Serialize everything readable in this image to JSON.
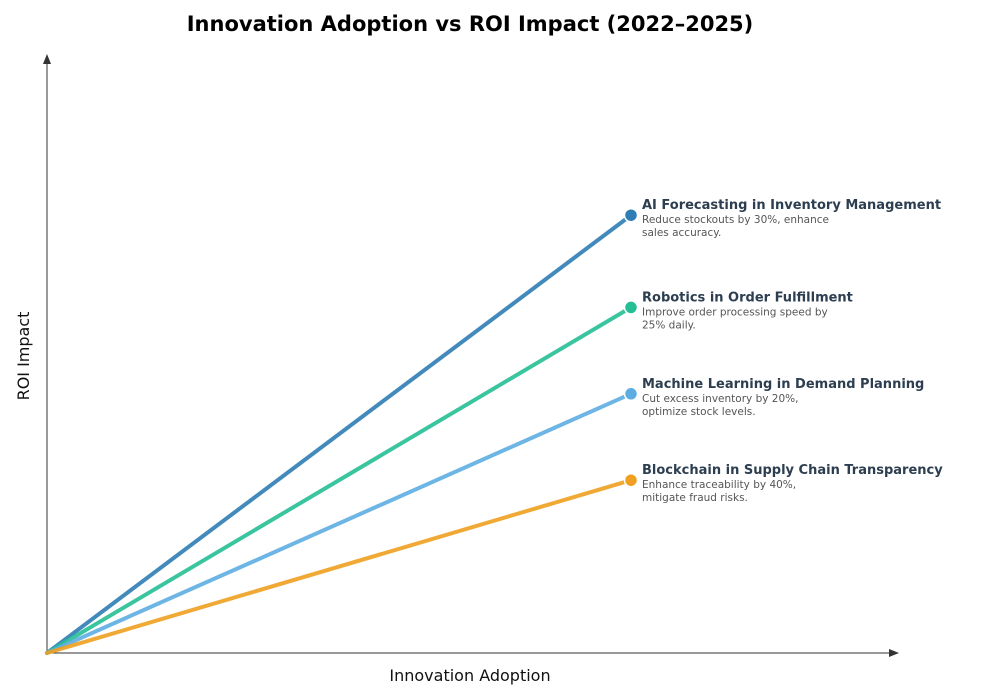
{
  "chart_data": {
    "type": "line",
    "title": "Innovation Adoption vs ROI Impact (2022–2025)",
    "xlabel": "Innovation Adoption",
    "ylabel": "ROI Impact",
    "xlim": [
      0,
      1.5
    ],
    "ylim": [
      0,
      1.5
    ],
    "grid": false,
    "series": [
      {
        "name": "AI Forecasting in Inventory Management",
        "description": [
          "Reduce stockouts by 30%, enhance",
          "sales accuracy."
        ],
        "color": "#2e7db5",
        "x": [
          0,
          1
        ],
        "y": [
          0,
          0.76
        ]
      },
      {
        "name": "Robotics in Order Fulfillment",
        "description": [
          "Improve order processing speed by",
          "25% daily."
        ],
        "color": "#26bf95",
        "x": [
          0,
          1
        ],
        "y": [
          0,
          0.6
        ]
      },
      {
        "name": "Machine Learning in Demand Planning",
        "description": [
          "Cut excess inventory by 20%,",
          "optimize stock levels."
        ],
        "color": "#5dade2",
        "x": [
          0,
          1
        ],
        "y": [
          0,
          0.45
        ]
      },
      {
        "name": "Blockchain in Supply Chain Transparency",
        "description": [
          "Enhance traceability by 40%,",
          "mitigate fraud risks."
        ],
        "color": "#f0a020",
        "x": [
          0,
          1
        ],
        "y": [
          0,
          0.3
        ]
      }
    ]
  }
}
